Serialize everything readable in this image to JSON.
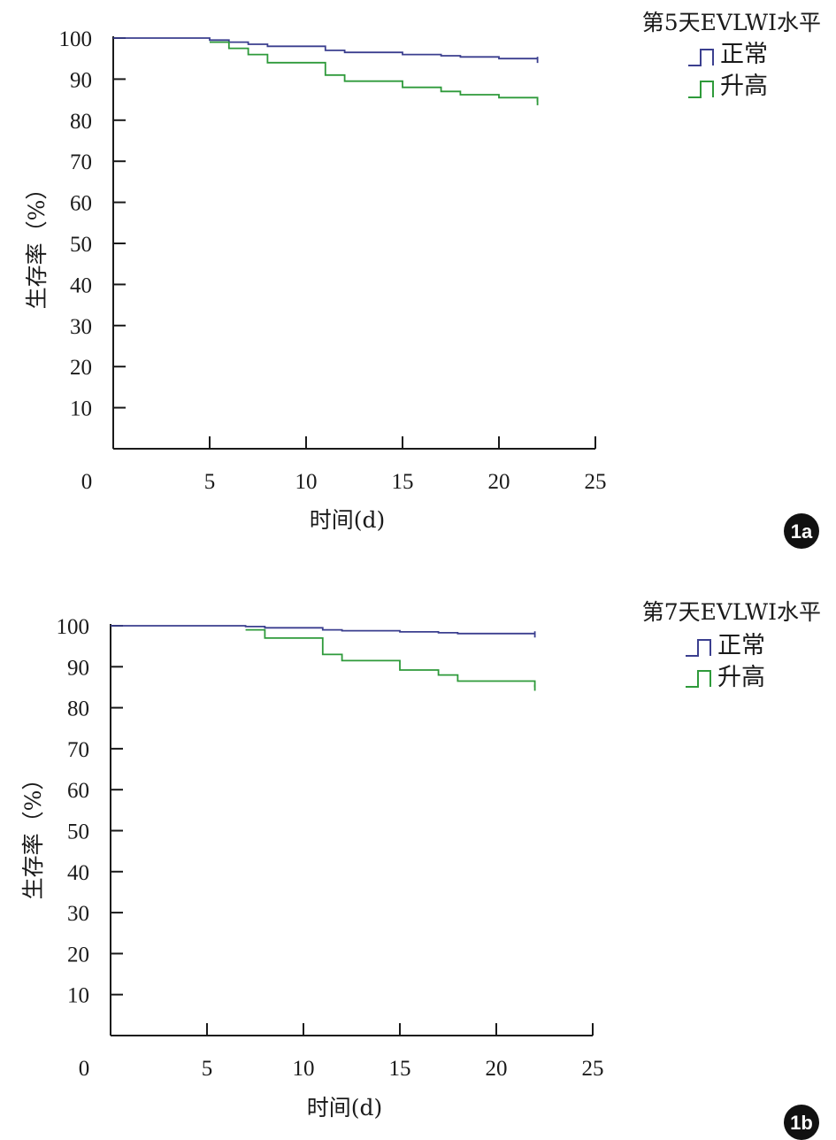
{
  "chart_data": [
    {
      "type": "line",
      "step": true,
      "panel_label": "1a",
      "xlabel": "时间(d)",
      "ylabel": "生存率（%）",
      "xlim": [
        0,
        25
      ],
      "ylim": [
        0,
        100
      ],
      "x_ticks": [
        0,
        5,
        10,
        15,
        20,
        25
      ],
      "y_ticks": [
        10,
        20,
        30,
        40,
        50,
        60,
        70,
        80,
        90,
        100
      ],
      "legend_title": "第5天EVLWI水平",
      "legend_position": "top-right",
      "grid": false,
      "series": [
        {
          "name": "正常",
          "color": "#3b3f8f",
          "x": [
            0,
            5,
            6,
            7,
            8,
            11,
            12,
            15,
            17,
            18,
            20,
            22
          ],
          "y": [
            100,
            99.5,
            99,
            98.5,
            98,
            97,
            96.5,
            96,
            95.7,
            95.4,
            95,
            94.8
          ]
        },
        {
          "name": "升高",
          "color": "#2e9a3a",
          "x": [
            5,
            6,
            7,
            8,
            11,
            12,
            15,
            17,
            18,
            20,
            22
          ],
          "y": [
            99,
            97.5,
            96,
            94,
            91,
            89.5,
            88,
            87,
            86.2,
            85.5,
            84.5
          ]
        }
      ]
    },
    {
      "type": "line",
      "step": true,
      "panel_label": "1b",
      "xlabel": "时间(d)",
      "ylabel": "生存率（%）",
      "xlim": [
        0,
        25
      ],
      "ylim": [
        0,
        100
      ],
      "x_ticks": [
        0,
        5,
        10,
        15,
        20,
        25
      ],
      "y_ticks": [
        10,
        20,
        30,
        40,
        50,
        60,
        70,
        80,
        90,
        100
      ],
      "legend_title": "第7天EVLWI水平",
      "legend_position": "top-right",
      "grid": false,
      "series": [
        {
          "name": "正常",
          "color": "#3b3f8f",
          "x": [
            0,
            7,
            8,
            11,
            12,
            15,
            17,
            18,
            22
          ],
          "y": [
            100,
            99.8,
            99.5,
            99,
            98.8,
            98.5,
            98.3,
            98.1,
            98
          ]
        },
        {
          "name": "升高",
          "color": "#2e9a3a",
          "x": [
            7,
            8,
            11,
            12,
            15,
            17,
            18,
            22
          ],
          "y": [
            99,
            97,
            93,
            91.5,
            89.2,
            88,
            86.5,
            85
          ]
        }
      ]
    }
  ]
}
